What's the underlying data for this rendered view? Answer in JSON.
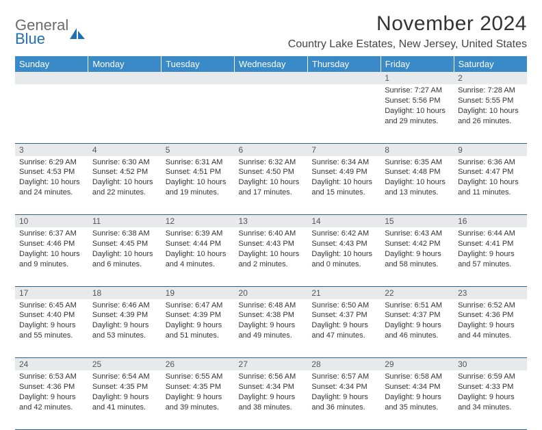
{
  "logo": {
    "text1": "General",
    "text2": "Blue"
  },
  "title": "November 2024",
  "location": "Country Lake Estates, New Jersey, United States",
  "colors": {
    "header_bg": "#3a8ac8",
    "header_text": "#ffffff",
    "daynum_bg": "#e7e9eb",
    "border": "#2c5f8a",
    "logo_gray": "#6b6b6b",
    "logo_blue": "#1f6fb2"
  },
  "weekdays": [
    "Sunday",
    "Monday",
    "Tuesday",
    "Wednesday",
    "Thursday",
    "Friday",
    "Saturday"
  ],
  "weeks": [
    [
      {
        "n": "",
        "sr": "",
        "ss": "",
        "dl": ""
      },
      {
        "n": "",
        "sr": "",
        "ss": "",
        "dl": ""
      },
      {
        "n": "",
        "sr": "",
        "ss": "",
        "dl": ""
      },
      {
        "n": "",
        "sr": "",
        "ss": "",
        "dl": ""
      },
      {
        "n": "",
        "sr": "",
        "ss": "",
        "dl": ""
      },
      {
        "n": "1",
        "sr": "Sunrise: 7:27 AM",
        "ss": "Sunset: 5:56 PM",
        "dl": "Daylight: 10 hours and 29 minutes."
      },
      {
        "n": "2",
        "sr": "Sunrise: 7:28 AM",
        "ss": "Sunset: 5:55 PM",
        "dl": "Daylight: 10 hours and 26 minutes."
      }
    ],
    [
      {
        "n": "3",
        "sr": "Sunrise: 6:29 AM",
        "ss": "Sunset: 4:53 PM",
        "dl": "Daylight: 10 hours and 24 minutes."
      },
      {
        "n": "4",
        "sr": "Sunrise: 6:30 AM",
        "ss": "Sunset: 4:52 PM",
        "dl": "Daylight: 10 hours and 22 minutes."
      },
      {
        "n": "5",
        "sr": "Sunrise: 6:31 AM",
        "ss": "Sunset: 4:51 PM",
        "dl": "Daylight: 10 hours and 19 minutes."
      },
      {
        "n": "6",
        "sr": "Sunrise: 6:32 AM",
        "ss": "Sunset: 4:50 PM",
        "dl": "Daylight: 10 hours and 17 minutes."
      },
      {
        "n": "7",
        "sr": "Sunrise: 6:34 AM",
        "ss": "Sunset: 4:49 PM",
        "dl": "Daylight: 10 hours and 15 minutes."
      },
      {
        "n": "8",
        "sr": "Sunrise: 6:35 AM",
        "ss": "Sunset: 4:48 PM",
        "dl": "Daylight: 10 hours and 13 minutes."
      },
      {
        "n": "9",
        "sr": "Sunrise: 6:36 AM",
        "ss": "Sunset: 4:47 PM",
        "dl": "Daylight: 10 hours and 11 minutes."
      }
    ],
    [
      {
        "n": "10",
        "sr": "Sunrise: 6:37 AM",
        "ss": "Sunset: 4:46 PM",
        "dl": "Daylight: 10 hours and 9 minutes."
      },
      {
        "n": "11",
        "sr": "Sunrise: 6:38 AM",
        "ss": "Sunset: 4:45 PM",
        "dl": "Daylight: 10 hours and 6 minutes."
      },
      {
        "n": "12",
        "sr": "Sunrise: 6:39 AM",
        "ss": "Sunset: 4:44 PM",
        "dl": "Daylight: 10 hours and 4 minutes."
      },
      {
        "n": "13",
        "sr": "Sunrise: 6:40 AM",
        "ss": "Sunset: 4:43 PM",
        "dl": "Daylight: 10 hours and 2 minutes."
      },
      {
        "n": "14",
        "sr": "Sunrise: 6:42 AM",
        "ss": "Sunset: 4:43 PM",
        "dl": "Daylight: 10 hours and 0 minutes."
      },
      {
        "n": "15",
        "sr": "Sunrise: 6:43 AM",
        "ss": "Sunset: 4:42 PM",
        "dl": "Daylight: 9 hours and 58 minutes."
      },
      {
        "n": "16",
        "sr": "Sunrise: 6:44 AM",
        "ss": "Sunset: 4:41 PM",
        "dl": "Daylight: 9 hours and 57 minutes."
      }
    ],
    [
      {
        "n": "17",
        "sr": "Sunrise: 6:45 AM",
        "ss": "Sunset: 4:40 PM",
        "dl": "Daylight: 9 hours and 55 minutes."
      },
      {
        "n": "18",
        "sr": "Sunrise: 6:46 AM",
        "ss": "Sunset: 4:39 PM",
        "dl": "Daylight: 9 hours and 53 minutes."
      },
      {
        "n": "19",
        "sr": "Sunrise: 6:47 AM",
        "ss": "Sunset: 4:39 PM",
        "dl": "Daylight: 9 hours and 51 minutes."
      },
      {
        "n": "20",
        "sr": "Sunrise: 6:48 AM",
        "ss": "Sunset: 4:38 PM",
        "dl": "Daylight: 9 hours and 49 minutes."
      },
      {
        "n": "21",
        "sr": "Sunrise: 6:50 AM",
        "ss": "Sunset: 4:37 PM",
        "dl": "Daylight: 9 hours and 47 minutes."
      },
      {
        "n": "22",
        "sr": "Sunrise: 6:51 AM",
        "ss": "Sunset: 4:37 PM",
        "dl": "Daylight: 9 hours and 46 minutes."
      },
      {
        "n": "23",
        "sr": "Sunrise: 6:52 AM",
        "ss": "Sunset: 4:36 PM",
        "dl": "Daylight: 9 hours and 44 minutes."
      }
    ],
    [
      {
        "n": "24",
        "sr": "Sunrise: 6:53 AM",
        "ss": "Sunset: 4:36 PM",
        "dl": "Daylight: 9 hours and 42 minutes."
      },
      {
        "n": "25",
        "sr": "Sunrise: 6:54 AM",
        "ss": "Sunset: 4:35 PM",
        "dl": "Daylight: 9 hours and 41 minutes."
      },
      {
        "n": "26",
        "sr": "Sunrise: 6:55 AM",
        "ss": "Sunset: 4:35 PM",
        "dl": "Daylight: 9 hours and 39 minutes."
      },
      {
        "n": "27",
        "sr": "Sunrise: 6:56 AM",
        "ss": "Sunset: 4:34 PM",
        "dl": "Daylight: 9 hours and 38 minutes."
      },
      {
        "n": "28",
        "sr": "Sunrise: 6:57 AM",
        "ss": "Sunset: 4:34 PM",
        "dl": "Daylight: 9 hours and 36 minutes."
      },
      {
        "n": "29",
        "sr": "Sunrise: 6:58 AM",
        "ss": "Sunset: 4:34 PM",
        "dl": "Daylight: 9 hours and 35 minutes."
      },
      {
        "n": "30",
        "sr": "Sunrise: 6:59 AM",
        "ss": "Sunset: 4:33 PM",
        "dl": "Daylight: 9 hours and 34 minutes."
      }
    ]
  ]
}
